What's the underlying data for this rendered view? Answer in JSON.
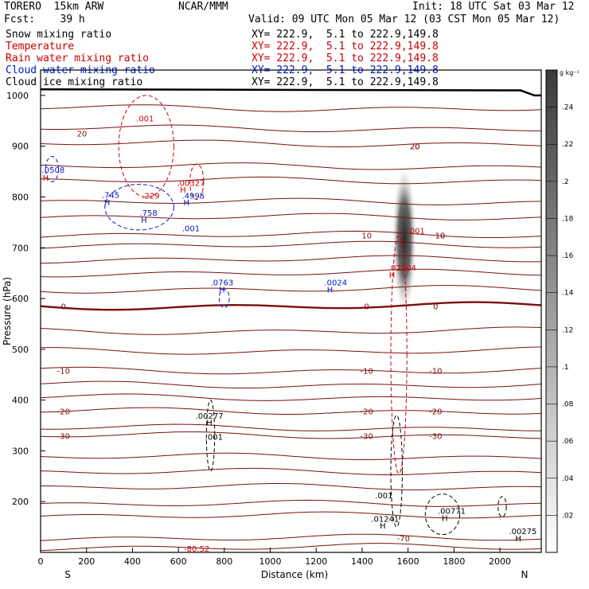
{
  "header": {
    "model": "TORERO  15km ARW",
    "center": "NCAR/MMM",
    "init": "Init: 18 UTC Sat 03 Mar 12",
    "fcst": "Fcst:    39 h",
    "valid": "Valid: 09 UTC Mon 05 Mar 12 (03 CST Mon 05 Mar 12)"
  },
  "fields": [
    {
      "name": "Snow mixing ratio",
      "color": "#000000",
      "xy": "XY= 222.9,  5.1 to 222.9,149.8"
    },
    {
      "name": "Temperature",
      "color": "#cc0000",
      "xy": "XY= 222.9,  5.1 to 222.9,149.8"
    },
    {
      "name": "Rain water mixing ratio",
      "color": "#cc0000",
      "xy": "XY= 222.9,  5.1 to 222.9,149.8"
    },
    {
      "name": "Cloud water mixing ratio",
      "color": "#0018c8",
      "xy": "XY= 222.9,  5.1 to 222.9,149.8"
    },
    {
      "name": "Cloud ice mixing ratio",
      "color": "#000000",
      "xy": "XY= 222.9,  5.1 to 222.9,149.8"
    }
  ],
  "chart_data": {
    "type": "contour",
    "xlabel": "Distance (km)",
    "ylabel": "Pressure (hPa)",
    "xlim": [
      0,
      2180
    ],
    "ylim": [
      1050,
      100
    ],
    "x_ticks": [
      0,
      200,
      400,
      600,
      800,
      1000,
      1200,
      1400,
      1600,
      1800,
      2000
    ],
    "y_ticks": [
      200,
      300,
      400,
      500,
      600,
      700,
      800,
      900,
      1000
    ],
    "left_end_label": "S",
    "right_end_label": "N",
    "colorbar": {
      "unit": "g kg⁻¹",
      "ticks": [
        ".02",
        ".04",
        ".06",
        ".08",
        ".1",
        ".12",
        ".14",
        ".16",
        ".18",
        ".2",
        ".22",
        ".24"
      ],
      "values": [
        0.02,
        0.04,
        0.06,
        0.08,
        0.1,
        0.12,
        0.14,
        0.16,
        0.18,
        0.2,
        0.22,
        0.24
      ]
    },
    "isotherm_labels": [
      "-70",
      "-30",
      "-20",
      "-10",
      "0",
      "10",
      "20",
      "-30",
      "-20",
      "-10",
      "0",
      "10",
      "20",
      "-30",
      "-20",
      "-10",
      "0",
      "10",
      "20"
    ],
    "isotherm_label_values": [
      -70,
      -30,
      -20,
      -10,
      0,
      10,
      20,
      -30,
      -20,
      -10,
      0,
      10,
      20,
      -30,
      -20,
      -10,
      0,
      10,
      20
    ],
    "isotherm_label_x": [
      1580,
      100,
      100,
      100,
      100,
      1420,
      180,
      1420,
      1420,
      1420,
      1420,
      1740,
      1630,
      1720,
      1720,
      1720,
      1720,
      1740,
      1630
    ],
    "isotherm_label_p": [
      128,
      330,
      378,
      458,
      585,
      725,
      925,
      330,
      378,
      458,
      585,
      725,
      900,
      330,
      378,
      458,
      585,
      725,
      900
    ],
    "annotations": [
      {
        "text": "-80.52",
        "color": "#cc0000",
        "x": 680,
        "p": 108
      },
      {
        "text": "H",
        "color": "#000000",
        "x": 2080,
        "p": 128
      },
      {
        "text": ".00275",
        "color": "#000000",
        "x": 2100,
        "p": 142
      },
      {
        "text": "H",
        "color": "#000000",
        "x": 1490,
        "p": 153
      },
      {
        "text": ".01241",
        "color": "#000000",
        "x": 1500,
        "p": 167
      },
      {
        "text": ".001",
        "color": "#000000",
        "x": 1495,
        "p": 213
      },
      {
        "text": "H",
        "color": "#000000",
        "x": 1760,
        "p": 168
      },
      {
        "text": ".00771",
        "color": "#000000",
        "x": 1790,
        "p": 182
      },
      {
        "text": ".001",
        "color": "#000000",
        "x": 755,
        "p": 328
      },
      {
        "text": "H",
        "color": "#000000",
        "x": 735,
        "p": 356
      },
      {
        "text": ".00277",
        "color": "#000000",
        "x": 735,
        "p": 370
      },
      {
        "text": "H",
        "color": "#0018c8",
        "x": 790,
        "p": 618
      },
      {
        "text": ".0763",
        "color": "#0018c8",
        "x": 790,
        "p": 632
      },
      {
        "text": "H",
        "color": "#0018c8",
        "x": 1260,
        "p": 618
      },
      {
        "text": ".0024",
        "color": "#0018c8",
        "x": 1285,
        "p": 632
      },
      {
        "text": "H",
        "color": "#cc0000",
        "x": 1530,
        "p": 647
      },
      {
        "text": ".02904",
        "color": "#cc0000",
        "x": 1575,
        "p": 661
      },
      {
        "text": ".001",
        "color": "#cc0000",
        "x": 1635,
        "p": 734
      },
      {
        "text": ".001",
        "color": "#0018c8",
        "x": 655,
        "p": 739
      },
      {
        "text": "H",
        "color": "#0018c8",
        "x": 450,
        "p": 755
      },
      {
        "text": ".758",
        "color": "#0018c8",
        "x": 470,
        "p": 769
      },
      {
        "text": "H",
        "color": "#0018c8",
        "x": 290,
        "p": 790
      },
      {
        "text": ".745",
        "color": "#0018c8",
        "x": 305,
        "p": 805
      },
      {
        "text": ".229",
        "color": "#cc0000",
        "x": 480,
        "p": 803
      },
      {
        "text": "H",
        "color": "#0018c8",
        "x": 635,
        "p": 790
      },
      {
        "text": ".4995",
        "color": "#0018c8",
        "x": 665,
        "p": 803
      },
      {
        "text": "H",
        "color": "#cc0000",
        "x": 620,
        "p": 815
      },
      {
        "text": ".00327",
        "color": "#cc0000",
        "x": 655,
        "p": 828
      },
      {
        "text": "H",
        "color": "#cc0000",
        "x": 22,
        "p": 838
      },
      {
        "text": ".0508",
        "color": "#0018c8",
        "x": 55,
        "p": 854
      },
      {
        "text": ".001",
        "color": "#cc0000",
        "x": 455,
        "p": 955
      }
    ]
  }
}
